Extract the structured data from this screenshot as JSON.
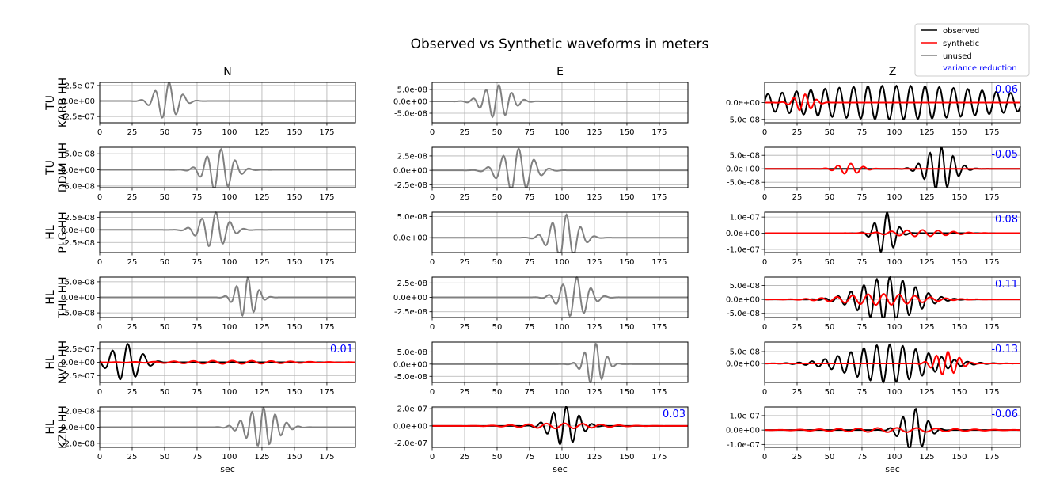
{
  "figure": {
    "title": "Observed vs Synthetic waveforms in meters",
    "xlabel": "sec"
  },
  "legend": {
    "placement": "top-right",
    "entries": [
      {
        "label": "observed",
        "color": "#000000",
        "kind": "line"
      },
      {
        "label": "synthetic",
        "color": "#ff0000",
        "kind": "line"
      },
      {
        "label": "unused",
        "color": "#808080",
        "kind": "line"
      },
      {
        "label": "variance reduction",
        "color": "#0000ff",
        "kind": "text"
      }
    ]
  },
  "columns": [
    "N",
    "E",
    "Z"
  ],
  "stations": [
    {
      "network": "TU",
      "station": "KARB HH"
    },
    {
      "network": "TU",
      "station": "DDIM HH"
    },
    {
      "network": "HL",
      "station": "PLG HH"
    },
    {
      "network": "HL",
      "station": "THL HH"
    },
    {
      "network": "HL",
      "station": "NVR HH"
    },
    {
      "network": "HL",
      "station": "KZN HH"
    }
  ],
  "chart_data": {
    "type": "line",
    "grid": true,
    "xlim": [
      0,
      197
    ],
    "xticks": [
      0,
      25,
      50,
      75,
      100,
      125,
      150,
      175
    ],
    "xtick_labels": [
      "0",
      "25",
      "50",
      "75",
      "100",
      "125",
      "150",
      "175"
    ],
    "panels": [
      {
        "row": 0,
        "col": 0,
        "status": "unused",
        "ylim": [
          -3.5e-07,
          3e-07
        ],
        "yticks": [
          2.5e-07,
          0,
          -2.5e-07
        ],
        "ytick_labels": [
          "2.5e-07",
          "0.0e+00",
          "-2.5e-07"
        ],
        "variance_reduction": "",
        "observed": {
          "amp": 3e-07,
          "center": 52,
          "width": 12,
          "period": 11
        },
        "synthetic": null
      },
      {
        "row": 0,
        "col": 1,
        "status": "unused",
        "ylim": [
          -9e-08,
          8e-08
        ],
        "yticks": [
          5e-08,
          0,
          -5e-08
        ],
        "ytick_labels": [
          "5.0e-08",
          "0.0e+00",
          "-5.0e-08"
        ],
        "variance_reduction": "",
        "observed": {
          "amp": 7e-08,
          "center": 50,
          "width": 14,
          "period": 10
        },
        "synthetic": null
      },
      {
        "row": 0,
        "col": 2,
        "status": "used",
        "ylim": [
          -6e-08,
          6e-08
        ],
        "yticks": [
          0,
          -5e-08
        ],
        "ytick_labels": [
          "0.0e+00",
          "-5.0e-08"
        ],
        "variance_reduction": "0.06",
        "observed": {
          "amp": 5e-08,
          "center": 100,
          "width": 120,
          "period": 11
        },
        "synthetic": {
          "amp": 2.5e-08,
          "center": 30,
          "width": 10,
          "period": 9
        }
      },
      {
        "row": 1,
        "col": 0,
        "status": "unused",
        "ylim": [
          -5.5e-08,
          7e-08
        ],
        "yticks": [
          5e-08,
          0,
          -5e-08
        ],
        "ytick_labels": [
          "5.0e-08",
          "0.0e+00",
          "-5.0e-08"
        ],
        "variance_reduction": "",
        "observed": {
          "amp": 6.5e-08,
          "center": 92,
          "width": 14,
          "period": 11
        },
        "synthetic": null
      },
      {
        "row": 1,
        "col": 1,
        "status": "unused",
        "ylim": [
          -3e-08,
          4e-08
        ],
        "yticks": [
          2.5e-08,
          0,
          -2.5e-08
        ],
        "ytick_labels": [
          "2.5e-08",
          "0.0e+00",
          "-2.5e-08"
        ],
        "variance_reduction": "",
        "observed": {
          "amp": 3.8e-08,
          "center": 65,
          "width": 16,
          "period": 12
        },
        "synthetic": null
      },
      {
        "row": 1,
        "col": 2,
        "status": "used",
        "ylim": [
          -7e-08,
          8e-08
        ],
        "yticks": [
          5e-08,
          0,
          -5e-08
        ],
        "ytick_labels": [
          "5.0e-08",
          "0.0e+00",
          "-5.0e-08"
        ],
        "variance_reduction": "-0.05",
        "observed": {
          "amp": 8e-08,
          "center": 135,
          "width": 14,
          "period": 9
        },
        "synthetic": {
          "amp": 2e-08,
          "center": 65,
          "width": 12,
          "period": 10
        }
      },
      {
        "row": 2,
        "col": 0,
        "status": "unused",
        "ylim": [
          -4.5e-08,
          3.5e-08
        ],
        "yticks": [
          2.5e-08,
          0,
          -2.5e-08
        ],
        "ytick_labels": [
          "2.5e-08",
          "0.0e+00",
          "-2.5e-08"
        ],
        "variance_reduction": "",
        "observed": {
          "amp": 3.5e-08,
          "center": 88,
          "width": 14,
          "period": 11
        },
        "synthetic": null
      },
      {
        "row": 2,
        "col": 1,
        "status": "unused",
        "ylim": [
          -3.5e-08,
          6e-08
        ],
        "yticks": [
          5e-08,
          0
        ],
        "ytick_labels": [
          "5.0e-08",
          "0.0e+00"
        ],
        "variance_reduction": "",
        "observed": {
          "amp": 5.5e-08,
          "center": 102,
          "width": 14,
          "period": 11
        },
        "synthetic": null
      },
      {
        "row": 2,
        "col": 2,
        "status": "used",
        "ylim": [
          -1.2e-07,
          1.3e-07
        ],
        "yticks": [
          1e-07,
          0,
          -1e-07
        ],
        "ytick_labels": [
          "1.0e-07",
          "0.0e+00",
          "-1.0e-07"
        ],
        "variance_reduction": "0.08",
        "observed": {
          "amp": 1.3e-07,
          "center": 93,
          "width": 10,
          "period": 10
        },
        "synthetic": {
          "amp": 2e-08,
          "center": 120,
          "width": 30,
          "period": 12
        }
      },
      {
        "row": 3,
        "col": 0,
        "status": "unused",
        "ylim": [
          -6.5e-08,
          6.5e-08
        ],
        "yticks": [
          5e-08,
          0,
          -5e-08
        ],
        "ytick_labels": [
          "5.0e-08",
          "0.0e+00",
          "-5.0e-08"
        ],
        "variance_reduction": "",
        "observed": {
          "amp": 6.5e-08,
          "center": 113,
          "width": 10,
          "period": 9
        },
        "synthetic": null
      },
      {
        "row": 3,
        "col": 1,
        "status": "unused",
        "ylim": [
          -3.5e-08,
          3.5e-08
        ],
        "yticks": [
          2.5e-08,
          0,
          -2.5e-08
        ],
        "ytick_labels": [
          "2.5e-08",
          "0.0e+00",
          "-2.5e-08"
        ],
        "variance_reduction": "",
        "observed": {
          "amp": 3.5e-08,
          "center": 110,
          "width": 14,
          "period": 11
        },
        "synthetic": null
      },
      {
        "row": 3,
        "col": 2,
        "status": "used",
        "ylim": [
          -6.5e-08,
          8e-08
        ],
        "yticks": [
          5e-08,
          0,
          -5e-08
        ],
        "ytick_labels": [
          "5.0e-08",
          "0.0e+00",
          "-5.0e-08"
        ],
        "variance_reduction": "0.11",
        "observed": {
          "amp": 8e-08,
          "center": 95,
          "width": 28,
          "period": 10
        },
        "synthetic": {
          "amp": 2e-08,
          "center": 90,
          "width": 40,
          "period": 12
        }
      },
      {
        "row": 4,
        "col": 0,
        "status": "used",
        "ylim": [
          -3.8e-07,
          3.8e-07
        ],
        "yticks": [
          2.5e-07,
          0,
          -2.5e-07
        ],
        "ytick_labels": [
          "2.5e-07",
          "0.0e+00",
          "-2.5e-07"
        ],
        "variance_reduction": "0.01",
        "observed": {
          "amp": 3.5e-07,
          "center": 20,
          "width": 15,
          "period": 12
        },
        "synthetic": {
          "amp": 3e-08,
          "center": 100,
          "width": 60,
          "period": 15
        }
      },
      {
        "row": 4,
        "col": 1,
        "status": "unused",
        "ylim": [
          -7.5e-08,
          9e-08
        ],
        "yticks": [
          5e-08,
          0,
          -5e-08
        ],
        "ytick_labels": [
          "5.0e-08",
          "0.0e+00",
          "-5.0e-08"
        ],
        "variance_reduction": "",
        "observed": {
          "amp": 8.5e-08,
          "center": 125,
          "width": 10,
          "period": 9
        },
        "synthetic": null
      },
      {
        "row": 4,
        "col": 2,
        "status": "used",
        "ylim": [
          -8e-08,
          9e-08
        ],
        "yticks": [
          5e-08,
          0
        ],
        "ytick_labels": [
          "5.0e-08",
          "0.0e+00"
        ],
        "variance_reduction": "-0.13",
        "observed": {
          "amp": 8e-08,
          "center": 95,
          "width": 40,
          "period": 10
        },
        "synthetic": {
          "amp": 5e-08,
          "center": 140,
          "width": 12,
          "period": 9
        }
      },
      {
        "row": 5,
        "col": 0,
        "status": "unused",
        "ylim": [
          -2.5e-08,
          2.5e-08
        ],
        "yticks": [
          2e-08,
          0,
          -2e-08
        ],
        "ytick_labels": [
          "2.0e-08",
          "0.0e+00",
          "-2.0e-08"
        ],
        "variance_reduction": "",
        "observed": {
          "amp": 2.4e-08,
          "center": 125,
          "width": 16,
          "period": 9
        },
        "synthetic": null
      },
      {
        "row": 5,
        "col": 1,
        "status": "used",
        "ylim": [
          -2.5e-07,
          2.2e-07
        ],
        "yticks": [
          2e-07,
          0,
          -2e-07
        ],
        "ytick_labels": [
          "2.0e-07",
          "0.0e+00",
          "-2.0e-07"
        ],
        "variance_reduction": "0.03",
        "observed": {
          "amp": 2.3e-07,
          "center": 102,
          "width": 14,
          "period": 10
        },
        "synthetic": {
          "amp": 3e-08,
          "center": 100,
          "width": 40,
          "period": 14
        }
      },
      {
        "row": 5,
        "col": 2,
        "status": "used",
        "ylim": [
          -1.2e-07,
          1.6e-07
        ],
        "yticks": [
          1e-07,
          0,
          -1e-07
        ],
        "ytick_labels": [
          "1.0e-07",
          "0.0e+00",
          "-1.0e-07"
        ],
        "variance_reduction": "-0.06",
        "observed": {
          "amp": 1.5e-07,
          "center": 115,
          "width": 12,
          "period": 10
        },
        "synthetic": {
          "amp": 1.5e-08,
          "center": 100,
          "width": 60,
          "period": 15
        }
      }
    ]
  }
}
